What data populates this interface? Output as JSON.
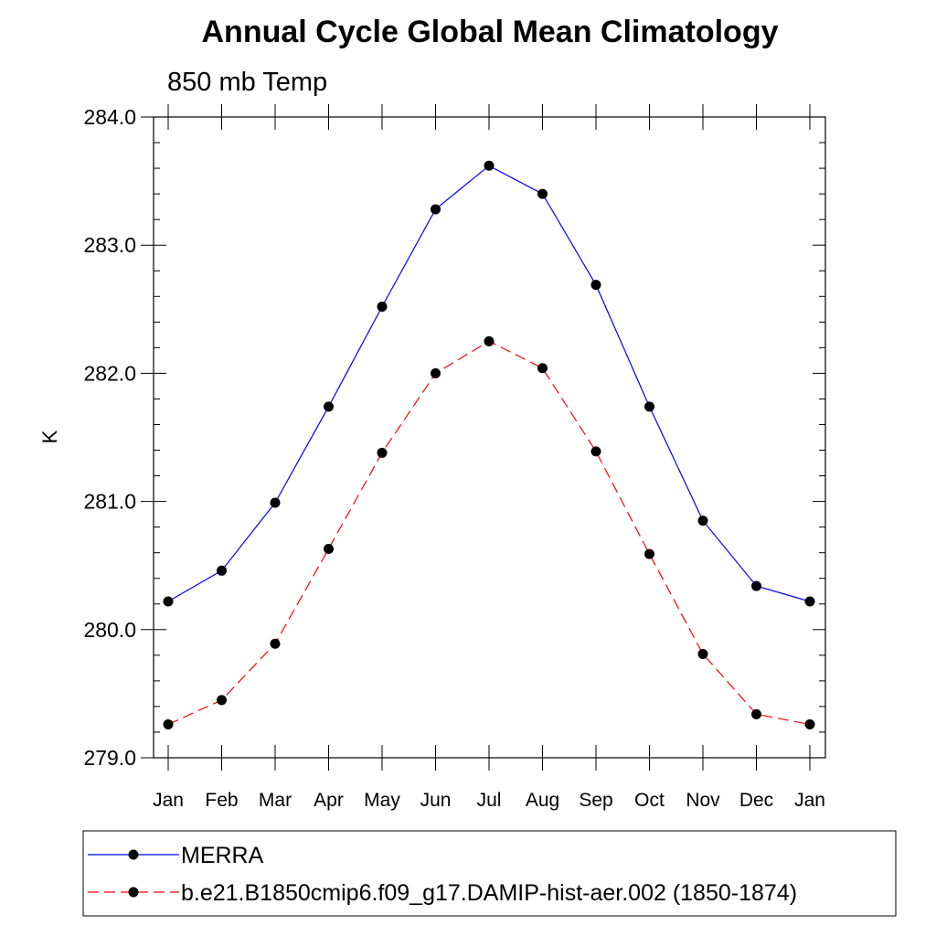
{
  "chart_data": {
    "type": "line",
    "title": "Annual Cycle Global Mean Climatology",
    "subtitle": "850 mb Temp",
    "xlabel": "",
    "ylabel": "K",
    "categories": [
      "Jan",
      "Feb",
      "Mar",
      "Apr",
      "May",
      "Jun",
      "Jul",
      "Aug",
      "Sep",
      "Oct",
      "Nov",
      "Dec",
      "Jan"
    ],
    "ylim": [
      279.0,
      284.0
    ],
    "yticks": [
      "279.0",
      "280.0",
      "281.0",
      "282.0",
      "283.0",
      "284.0"
    ],
    "grid": false,
    "legend_position": "bottom",
    "series": [
      {
        "name": "MERRA",
        "color": "#0000ff",
        "line_style": "solid",
        "marker": "filled-circle",
        "values": [
          280.22,
          280.46,
          280.99,
          281.74,
          282.52,
          283.28,
          283.62,
          283.4,
          282.69,
          281.74,
          280.85,
          280.34,
          280.22
        ]
      },
      {
        "name": "b.e21.B1850cmip6.f09_g17.DAMIP-hist-aer.002 (1850-1874)",
        "color": "#ff0000",
        "line_style": "dashed",
        "marker": "filled-circle",
        "values": [
          279.26,
          279.45,
          279.89,
          280.63,
          281.38,
          282.0,
          282.25,
          282.04,
          281.39,
          280.59,
          279.81,
          279.34,
          279.26
        ]
      }
    ]
  }
}
